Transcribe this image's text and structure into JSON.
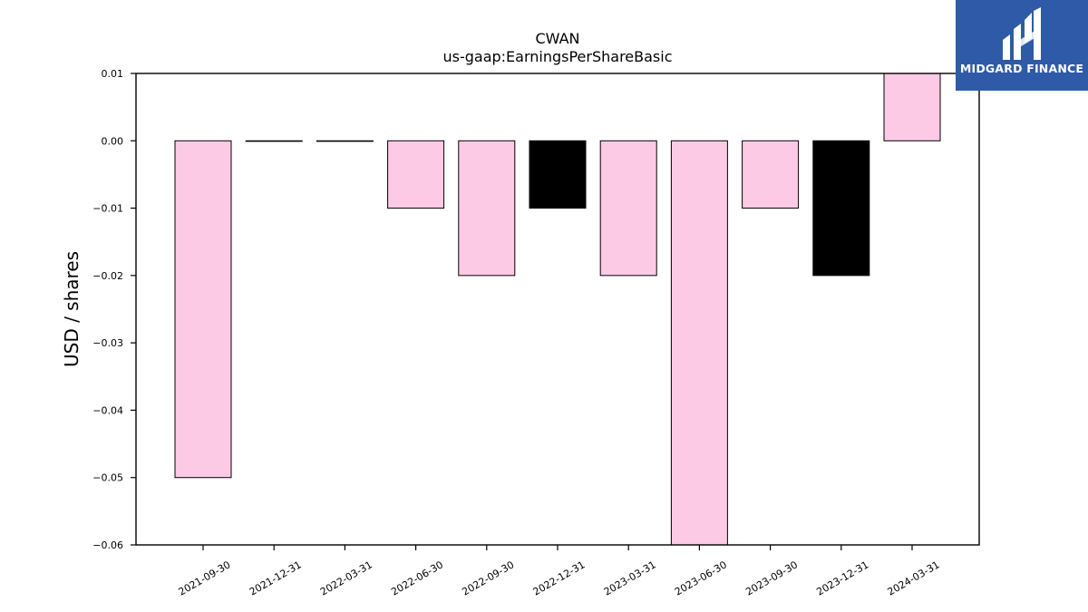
{
  "chart_data": {
    "type": "bar",
    "title": "CWAN",
    "subtitle": "us-gaap:EarningsPerShareBasic",
    "xlabel": "",
    "ylabel": "USD / shares",
    "categories": [
      "2021-09-30",
      "2021-12-31",
      "2022-03-31",
      "2022-06-30",
      "2022-09-30",
      "2022-12-31",
      "2023-03-31",
      "2023-06-30",
      "2023-09-30",
      "2023-12-31",
      "2024-03-31"
    ],
    "values": [
      -0.05,
      0.0,
      0.0,
      -0.01,
      -0.02,
      -0.01,
      -0.02,
      -0.06,
      -0.01,
      -0.02,
      0.01
    ],
    "bar_colors": [
      "#fccae4",
      "#fccae4",
      "#fccae4",
      "#fccae4",
      "#fccae4",
      "#000000",
      "#fccae4",
      "#fccae4",
      "#fccae4",
      "#000000",
      "#fccae4"
    ],
    "bar_edge_color": "#000000",
    "ylim": [
      -0.06,
      0.01
    ],
    "yticks": [
      0.01,
      0.0,
      -0.01,
      -0.02,
      -0.03,
      -0.04,
      -0.05,
      -0.06
    ],
    "ytick_labels": [
      "0.01",
      "0.00",
      "−0.01",
      "−0.02",
      "−0.03",
      "−0.04",
      "−0.05",
      "−0.06"
    ],
    "grid": false,
    "legend": "none"
  },
  "logo": {
    "text": "MIDGARD FINANCE",
    "background": "#2f5aa8"
  }
}
